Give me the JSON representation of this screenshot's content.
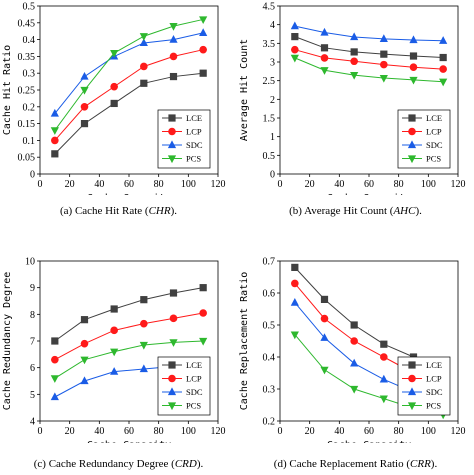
{
  "chart_data": [
    {
      "type": "line",
      "caption_prefix": "(a)",
      "caption_text": "Cache Hit Rate (",
      "caption_abbr": "CHR",
      "caption_suffix": ").",
      "xlabel": "Cache Capacity",
      "ylabel": "Cache Hit Ratio",
      "xlim": [
        0,
        120
      ],
      "ylim": [
        0,
        0.5
      ],
      "xticks": [
        0,
        20,
        40,
        60,
        80,
        100,
        120
      ],
      "yticks": [
        0,
        0.05,
        0.1,
        0.15,
        0.2,
        0.25,
        0.3,
        0.35,
        0.4,
        0.45,
        0.5
      ],
      "yticklabels": [
        "0",
        "0.05",
        "0.1",
        "0.15",
        "0.2",
        "0.25",
        "0.3",
        "0.35",
        "0.4",
        "0.45",
        "0.5"
      ],
      "x": [
        10,
        30,
        50,
        70,
        90,
        110
      ],
      "legend_position": "bottom-right",
      "series": [
        {
          "name": "LCE",
          "values": [
            0.06,
            0.15,
            0.21,
            0.27,
            0.29,
            0.3
          ]
        },
        {
          "name": "LCP",
          "values": [
            0.1,
            0.2,
            0.26,
            0.32,
            0.35,
            0.37
          ]
        },
        {
          "name": "SDC",
          "values": [
            0.18,
            0.29,
            0.35,
            0.39,
            0.4,
            0.42
          ]
        },
        {
          "name": "PCS",
          "values": [
            0.13,
            0.25,
            0.36,
            0.41,
            0.44,
            0.46
          ]
        }
      ]
    },
    {
      "type": "line",
      "caption_prefix": "(b)",
      "caption_text": "Average Hit Count (",
      "caption_abbr": "AHC",
      "caption_suffix": ").",
      "xlabel": "Cache Capacity",
      "ylabel": "Average Hit Count",
      "xlim": [
        0,
        120
      ],
      "ylim": [
        0,
        4.5
      ],
      "xticks": [
        0,
        20,
        40,
        60,
        80,
        100,
        120
      ],
      "yticks": [
        0,
        0.5,
        1,
        1.5,
        2,
        2.5,
        3,
        3.5,
        4,
        4.5
      ],
      "yticklabels": [
        "0",
        "0.5",
        "1",
        "1.5",
        "2",
        "2.5",
        "3",
        "3.5",
        "4",
        "4.5"
      ],
      "x": [
        10,
        30,
        50,
        70,
        90,
        110
      ],
      "legend_position": "bottom-right",
      "series": [
        {
          "name": "LCE",
          "values": [
            3.68,
            3.38,
            3.27,
            3.21,
            3.16,
            3.12
          ]
        },
        {
          "name": "LCP",
          "values": [
            3.33,
            3.11,
            3.02,
            2.93,
            2.86,
            2.81
          ]
        },
        {
          "name": "SDC",
          "values": [
            3.96,
            3.79,
            3.67,
            3.62,
            3.59,
            3.57
          ]
        },
        {
          "name": "PCS",
          "values": [
            3.11,
            2.78,
            2.65,
            2.57,
            2.52,
            2.47
          ]
        }
      ]
    },
    {
      "type": "line",
      "caption_prefix": "(c)",
      "caption_text": "Cache Redundancy Degree (",
      "caption_abbr": "CRD",
      "caption_suffix": ").",
      "xlabel": "Cache Capacity",
      "ylabel": "Cache Redundancy Degree",
      "xlim": [
        0,
        120
      ],
      "ylim": [
        4,
        10
      ],
      "xticks": [
        0,
        20,
        40,
        60,
        80,
        100,
        120
      ],
      "yticks": [
        4,
        5,
        6,
        7,
        8,
        9,
        10
      ],
      "yticklabels": [
        "4",
        "5",
        "6",
        "7",
        "8",
        "9",
        "10"
      ],
      "x": [
        10,
        30,
        50,
        70,
        90,
        110
      ],
      "legend_position": "bottom-right",
      "series": [
        {
          "name": "LCE",
          "values": [
            7.0,
            7.8,
            8.2,
            8.55,
            8.8,
            9.0
          ]
        },
        {
          "name": "LCP",
          "values": [
            6.3,
            6.9,
            7.4,
            7.65,
            7.85,
            8.05
          ]
        },
        {
          "name": "SDC",
          "values": [
            4.9,
            5.5,
            5.85,
            5.95,
            6.05,
            6.1
          ]
        },
        {
          "name": "PCS",
          "values": [
            5.6,
            6.3,
            6.6,
            6.85,
            6.95,
            7.0
          ]
        }
      ]
    },
    {
      "type": "line",
      "caption_prefix": "(d)",
      "caption_text": "Cache Replacement Ratio (",
      "caption_abbr": "CRR",
      "caption_suffix": ").",
      "xlabel": "Cache Capacity",
      "ylabel": "Cache Replacement Ratio",
      "xlim": [
        0,
        120
      ],
      "ylim": [
        0.2,
        0.7
      ],
      "xticks": [
        0,
        20,
        40,
        60,
        80,
        100,
        120
      ],
      "yticks": [
        0.2,
        0.3,
        0.4,
        0.5,
        0.6,
        0.7
      ],
      "yticklabels": [
        "0.2",
        "0.3",
        "0.4",
        "0.5",
        "0.6",
        "0.7"
      ],
      "x": [
        10,
        30,
        50,
        70,
        90,
        110
      ],
      "legend_position": "bottom-right",
      "series": [
        {
          "name": "LCE",
          "values": [
            0.68,
            0.58,
            0.5,
            0.44,
            0.4,
            0.37
          ]
        },
        {
          "name": "LCP",
          "values": [
            0.63,
            0.52,
            0.45,
            0.4,
            0.35,
            0.3
          ]
        },
        {
          "name": "SDC",
          "values": [
            0.57,
            0.46,
            0.38,
            0.33,
            0.29,
            0.26
          ]
        },
        {
          "name": "PCS",
          "values": [
            0.47,
            0.36,
            0.3,
            0.27,
            0.24,
            0.22
          ]
        }
      ]
    }
  ],
  "styles": {
    "LCE": {
      "color": "#404040",
      "marker": "square"
    },
    "LCP": {
      "color": "#ff1a1a",
      "marker": "circle"
    },
    "SDC": {
      "color": "#1a5ce6",
      "marker": "triangle-up"
    },
    "PCS": {
      "color": "#2eb82e",
      "marker": "triangle-down"
    }
  }
}
